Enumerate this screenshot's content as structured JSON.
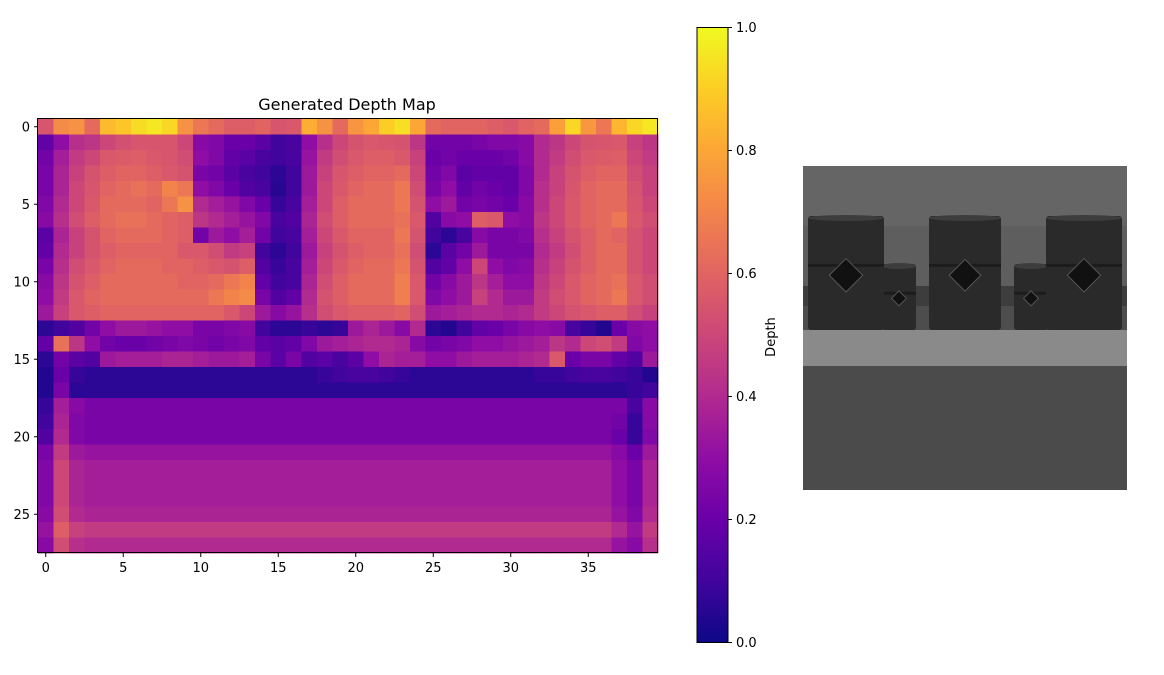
{
  "chart_data": [
    {
      "type": "heatmap",
      "title": "Generated Depth Map",
      "colormap": "plasma",
      "rows": 28,
      "cols": 40,
      "xlim": [
        -0.5,
        39.5
      ],
      "ylim": [
        27.5,
        -0.5
      ],
      "x_ticks": [
        0,
        5,
        10,
        15,
        20,
        25,
        30,
        35
      ],
      "y_ticks": [
        0,
        5,
        10,
        15,
        20,
        25
      ],
      "grid": false,
      "values": [
        [
          0.55,
          0.72,
          0.74,
          0.62,
          0.85,
          0.88,
          0.93,
          0.96,
          0.92,
          0.74,
          0.66,
          0.62,
          0.58,
          0.58,
          0.6,
          0.55,
          0.56,
          0.82,
          0.74,
          0.62,
          0.75,
          0.8,
          0.9,
          0.94,
          0.8,
          0.62,
          0.6,
          0.6,
          0.6,
          0.58,
          0.56,
          0.6,
          0.62,
          0.78,
          0.92,
          0.76,
          0.66,
          0.84,
          0.92,
          0.96
        ],
        [
          0.18,
          0.3,
          0.42,
          0.44,
          0.5,
          0.53,
          0.55,
          0.55,
          0.55,
          0.5,
          0.28,
          0.26,
          0.2,
          0.2,
          0.16,
          0.1,
          0.12,
          0.3,
          0.42,
          0.5,
          0.54,
          0.56,
          0.55,
          0.54,
          0.44,
          0.22,
          0.22,
          0.22,
          0.24,
          0.26,
          0.26,
          0.28,
          0.4,
          0.44,
          0.5,
          0.54,
          0.55,
          0.56,
          0.48,
          0.44
        ],
        [
          0.22,
          0.36,
          0.46,
          0.5,
          0.56,
          0.57,
          0.58,
          0.56,
          0.55,
          0.52,
          0.3,
          0.26,
          0.18,
          0.16,
          0.12,
          0.1,
          0.12,
          0.32,
          0.46,
          0.52,
          0.56,
          0.58,
          0.58,
          0.56,
          0.48,
          0.2,
          0.22,
          0.2,
          0.2,
          0.2,
          0.22,
          0.28,
          0.4,
          0.46,
          0.52,
          0.56,
          0.57,
          0.58,
          0.5,
          0.46
        ],
        [
          0.24,
          0.38,
          0.48,
          0.54,
          0.58,
          0.6,
          0.6,
          0.58,
          0.56,
          0.54,
          0.24,
          0.22,
          0.16,
          0.12,
          0.1,
          0.06,
          0.1,
          0.34,
          0.48,
          0.55,
          0.58,
          0.6,
          0.6,
          0.62,
          0.5,
          0.22,
          0.26,
          0.16,
          0.18,
          0.18,
          0.18,
          0.26,
          0.4,
          0.48,
          0.54,
          0.58,
          0.6,
          0.6,
          0.52,
          0.48
        ],
        [
          0.24,
          0.38,
          0.5,
          0.55,
          0.6,
          0.62,
          0.64,
          0.62,
          0.7,
          0.66,
          0.3,
          0.26,
          0.2,
          0.14,
          0.12,
          0.05,
          0.1,
          0.34,
          0.5,
          0.56,
          0.6,
          0.62,
          0.62,
          0.66,
          0.52,
          0.24,
          0.3,
          0.18,
          0.22,
          0.2,
          0.18,
          0.26,
          0.42,
          0.48,
          0.55,
          0.6,
          0.62,
          0.62,
          0.54,
          0.48
        ],
        [
          0.26,
          0.4,
          0.5,
          0.56,
          0.62,
          0.62,
          0.62,
          0.6,
          0.66,
          0.74,
          0.4,
          0.36,
          0.32,
          0.26,
          0.2,
          0.08,
          0.12,
          0.36,
          0.5,
          0.58,
          0.62,
          0.62,
          0.62,
          0.66,
          0.54,
          0.3,
          0.34,
          0.22,
          0.24,
          0.22,
          0.2,
          0.28,
          0.42,
          0.5,
          0.56,
          0.6,
          0.62,
          0.62,
          0.55,
          0.5
        ],
        [
          0.28,
          0.42,
          0.52,
          0.58,
          0.62,
          0.64,
          0.64,
          0.62,
          0.6,
          0.58,
          0.44,
          0.4,
          0.36,
          0.32,
          0.26,
          0.12,
          0.14,
          0.38,
          0.52,
          0.58,
          0.62,
          0.62,
          0.62,
          0.64,
          0.56,
          0.14,
          0.28,
          0.3,
          0.58,
          0.56,
          0.3,
          0.28,
          0.44,
          0.5,
          0.56,
          0.6,
          0.62,
          0.66,
          0.56,
          0.52
        ],
        [
          0.16,
          0.38,
          0.48,
          0.54,
          0.6,
          0.62,
          0.62,
          0.62,
          0.6,
          0.58,
          0.22,
          0.34,
          0.3,
          0.36,
          0.22,
          0.1,
          0.12,
          0.36,
          0.5,
          0.56,
          0.6,
          0.6,
          0.6,
          0.66,
          0.54,
          0.1,
          0.06,
          0.12,
          0.28,
          0.24,
          0.24,
          0.26,
          0.42,
          0.48,
          0.54,
          0.58,
          0.62,
          0.6,
          0.54,
          0.5
        ],
        [
          0.18,
          0.4,
          0.48,
          0.54,
          0.58,
          0.6,
          0.6,
          0.6,
          0.6,
          0.56,
          0.56,
          0.52,
          0.46,
          0.48,
          0.1,
          0.06,
          0.1,
          0.34,
          0.48,
          0.54,
          0.58,
          0.6,
          0.6,
          0.64,
          0.52,
          0.06,
          0.16,
          0.22,
          0.34,
          0.24,
          0.24,
          0.24,
          0.4,
          0.46,
          0.52,
          0.58,
          0.62,
          0.62,
          0.54,
          0.5
        ],
        [
          0.24,
          0.42,
          0.52,
          0.56,
          0.6,
          0.62,
          0.62,
          0.62,
          0.6,
          0.6,
          0.58,
          0.56,
          0.54,
          0.58,
          0.14,
          0.08,
          0.12,
          0.36,
          0.5,
          0.56,
          0.6,
          0.62,
          0.62,
          0.66,
          0.54,
          0.14,
          0.18,
          0.3,
          0.5,
          0.3,
          0.26,
          0.28,
          0.42,
          0.48,
          0.54,
          0.58,
          0.62,
          0.62,
          0.54,
          0.5
        ],
        [
          0.28,
          0.44,
          0.54,
          0.58,
          0.62,
          0.62,
          0.62,
          0.62,
          0.62,
          0.6,
          0.6,
          0.62,
          0.66,
          0.7,
          0.18,
          0.1,
          0.12,
          0.38,
          0.52,
          0.58,
          0.62,
          0.62,
          0.62,
          0.68,
          0.56,
          0.22,
          0.28,
          0.34,
          0.44,
          0.36,
          0.3,
          0.3,
          0.44,
          0.5,
          0.56,
          0.6,
          0.62,
          0.64,
          0.56,
          0.52
        ],
        [
          0.3,
          0.46,
          0.56,
          0.6,
          0.62,
          0.62,
          0.62,
          0.62,
          0.62,
          0.62,
          0.62,
          0.66,
          0.7,
          0.72,
          0.24,
          0.14,
          0.18,
          0.4,
          0.54,
          0.58,
          0.62,
          0.62,
          0.62,
          0.68,
          0.56,
          0.26,
          0.3,
          0.34,
          0.48,
          0.4,
          0.34,
          0.34,
          0.46,
          0.52,
          0.56,
          0.6,
          0.62,
          0.66,
          0.56,
          0.52
        ],
        [
          0.34,
          0.48,
          0.56,
          0.58,
          0.6,
          0.6,
          0.6,
          0.6,
          0.6,
          0.6,
          0.6,
          0.6,
          0.56,
          0.5,
          0.34,
          0.28,
          0.32,
          0.42,
          0.52,
          0.56,
          0.58,
          0.58,
          0.58,
          0.6,
          0.52,
          0.34,
          0.36,
          0.38,
          0.4,
          0.4,
          0.38,
          0.4,
          0.46,
          0.5,
          0.54,
          0.56,
          0.58,
          0.58,
          0.52,
          0.48
        ],
        [
          0.06,
          0.1,
          0.14,
          0.22,
          0.3,
          0.34,
          0.34,
          0.32,
          0.3,
          0.3,
          0.24,
          0.24,
          0.26,
          0.28,
          0.1,
          0.06,
          0.06,
          0.08,
          0.06,
          0.08,
          0.34,
          0.38,
          0.34,
          0.28,
          0.4,
          0.06,
          0.04,
          0.1,
          0.18,
          0.2,
          0.24,
          0.28,
          0.3,
          0.28,
          0.12,
          0.08,
          0.04,
          0.2,
          0.28,
          0.3
        ],
        [
          0.18,
          0.64,
          0.44,
          0.3,
          0.22,
          0.2,
          0.2,
          0.22,
          0.24,
          0.26,
          0.24,
          0.22,
          0.24,
          0.26,
          0.18,
          0.16,
          0.18,
          0.26,
          0.34,
          0.36,
          0.38,
          0.4,
          0.4,
          0.38,
          0.28,
          0.22,
          0.24,
          0.26,
          0.3,
          0.3,
          0.32,
          0.34,
          0.36,
          0.44,
          0.4,
          0.5,
          0.52,
          0.46,
          0.26,
          0.3
        ],
        [
          0.06,
          0.22,
          0.16,
          0.14,
          0.34,
          0.36,
          0.36,
          0.36,
          0.38,
          0.38,
          0.36,
          0.34,
          0.34,
          0.36,
          0.24,
          0.16,
          0.24,
          0.14,
          0.16,
          0.12,
          0.16,
          0.3,
          0.38,
          0.36,
          0.36,
          0.3,
          0.3,
          0.34,
          0.36,
          0.36,
          0.36,
          0.38,
          0.4,
          0.56,
          0.2,
          0.24,
          0.24,
          0.18,
          0.14,
          0.34
        ],
        [
          0.04,
          0.2,
          0.08,
          0.06,
          0.06,
          0.06,
          0.06,
          0.06,
          0.06,
          0.06,
          0.06,
          0.06,
          0.06,
          0.06,
          0.06,
          0.06,
          0.06,
          0.06,
          0.08,
          0.1,
          0.12,
          0.12,
          0.1,
          0.08,
          0.06,
          0.06,
          0.06,
          0.06,
          0.06,
          0.06,
          0.06,
          0.06,
          0.08,
          0.08,
          0.1,
          0.12,
          0.12,
          0.1,
          0.08,
          0.04
        ],
        [
          0.04,
          0.24,
          0.06,
          0.06,
          0.06,
          0.06,
          0.06,
          0.06,
          0.06,
          0.06,
          0.06,
          0.06,
          0.06,
          0.06,
          0.06,
          0.06,
          0.06,
          0.06,
          0.06,
          0.06,
          0.06,
          0.06,
          0.06,
          0.06,
          0.06,
          0.06,
          0.06,
          0.06,
          0.06,
          0.06,
          0.06,
          0.06,
          0.06,
          0.06,
          0.06,
          0.06,
          0.06,
          0.06,
          0.08,
          0.1
        ],
        [
          0.08,
          0.36,
          0.28,
          0.24,
          0.24,
          0.24,
          0.24,
          0.24,
          0.24,
          0.24,
          0.24,
          0.24,
          0.24,
          0.24,
          0.24,
          0.24,
          0.24,
          0.24,
          0.24,
          0.24,
          0.24,
          0.24,
          0.24,
          0.24,
          0.24,
          0.24,
          0.24,
          0.24,
          0.24,
          0.24,
          0.24,
          0.24,
          0.24,
          0.24,
          0.24,
          0.24,
          0.24,
          0.24,
          0.12,
          0.28
        ],
        [
          0.1,
          0.38,
          0.26,
          0.24,
          0.24,
          0.24,
          0.24,
          0.24,
          0.24,
          0.24,
          0.24,
          0.24,
          0.24,
          0.24,
          0.24,
          0.24,
          0.24,
          0.24,
          0.24,
          0.24,
          0.24,
          0.24,
          0.24,
          0.24,
          0.24,
          0.24,
          0.24,
          0.24,
          0.24,
          0.24,
          0.24,
          0.24,
          0.24,
          0.24,
          0.24,
          0.24,
          0.24,
          0.22,
          0.08,
          0.28
        ],
        [
          0.14,
          0.4,
          0.26,
          0.24,
          0.24,
          0.24,
          0.24,
          0.24,
          0.24,
          0.24,
          0.24,
          0.24,
          0.24,
          0.24,
          0.24,
          0.24,
          0.24,
          0.24,
          0.24,
          0.24,
          0.24,
          0.24,
          0.24,
          0.24,
          0.24,
          0.24,
          0.24,
          0.24,
          0.24,
          0.24,
          0.24,
          0.24,
          0.24,
          0.24,
          0.24,
          0.24,
          0.24,
          0.2,
          0.08,
          0.26
        ],
        [
          0.24,
          0.46,
          0.34,
          0.32,
          0.32,
          0.32,
          0.32,
          0.32,
          0.32,
          0.32,
          0.32,
          0.32,
          0.32,
          0.32,
          0.32,
          0.32,
          0.32,
          0.32,
          0.32,
          0.32,
          0.32,
          0.32,
          0.32,
          0.32,
          0.32,
          0.32,
          0.32,
          0.32,
          0.32,
          0.32,
          0.32,
          0.32,
          0.32,
          0.32,
          0.32,
          0.32,
          0.32,
          0.28,
          0.2,
          0.34
        ],
        [
          0.26,
          0.5,
          0.38,
          0.36,
          0.36,
          0.36,
          0.36,
          0.36,
          0.36,
          0.36,
          0.36,
          0.36,
          0.36,
          0.36,
          0.36,
          0.36,
          0.36,
          0.36,
          0.36,
          0.36,
          0.36,
          0.36,
          0.36,
          0.36,
          0.36,
          0.36,
          0.36,
          0.36,
          0.36,
          0.36,
          0.36,
          0.36,
          0.36,
          0.36,
          0.36,
          0.36,
          0.36,
          0.3,
          0.24,
          0.38
        ],
        [
          0.26,
          0.5,
          0.38,
          0.36,
          0.36,
          0.36,
          0.36,
          0.36,
          0.36,
          0.36,
          0.36,
          0.36,
          0.36,
          0.36,
          0.36,
          0.36,
          0.36,
          0.36,
          0.36,
          0.36,
          0.36,
          0.36,
          0.36,
          0.36,
          0.36,
          0.36,
          0.36,
          0.36,
          0.36,
          0.36,
          0.36,
          0.36,
          0.36,
          0.36,
          0.36,
          0.36,
          0.36,
          0.3,
          0.24,
          0.38
        ],
        [
          0.26,
          0.5,
          0.38,
          0.36,
          0.36,
          0.36,
          0.36,
          0.36,
          0.36,
          0.36,
          0.36,
          0.36,
          0.36,
          0.36,
          0.36,
          0.36,
          0.36,
          0.36,
          0.36,
          0.36,
          0.36,
          0.36,
          0.36,
          0.36,
          0.36,
          0.36,
          0.36,
          0.36,
          0.36,
          0.36,
          0.36,
          0.36,
          0.36,
          0.36,
          0.36,
          0.36,
          0.36,
          0.3,
          0.24,
          0.38
        ],
        [
          0.28,
          0.52,
          0.4,
          0.38,
          0.38,
          0.38,
          0.38,
          0.38,
          0.38,
          0.38,
          0.38,
          0.38,
          0.38,
          0.38,
          0.38,
          0.38,
          0.38,
          0.38,
          0.38,
          0.38,
          0.38,
          0.38,
          0.38,
          0.38,
          0.38,
          0.38,
          0.38,
          0.38,
          0.38,
          0.38,
          0.38,
          0.38,
          0.38,
          0.38,
          0.38,
          0.38,
          0.38,
          0.32,
          0.26,
          0.4
        ],
        [
          0.32,
          0.58,
          0.48,
          0.46,
          0.46,
          0.46,
          0.46,
          0.46,
          0.46,
          0.46,
          0.46,
          0.46,
          0.46,
          0.46,
          0.46,
          0.46,
          0.46,
          0.46,
          0.46,
          0.46,
          0.46,
          0.46,
          0.46,
          0.46,
          0.46,
          0.46,
          0.46,
          0.46,
          0.46,
          0.46,
          0.46,
          0.46,
          0.46,
          0.46,
          0.46,
          0.46,
          0.46,
          0.4,
          0.32,
          0.46
        ],
        [
          0.28,
          0.52,
          0.42,
          0.4,
          0.4,
          0.4,
          0.4,
          0.4,
          0.4,
          0.4,
          0.4,
          0.4,
          0.4,
          0.4,
          0.4,
          0.4,
          0.4,
          0.4,
          0.4,
          0.4,
          0.4,
          0.4,
          0.4,
          0.4,
          0.4,
          0.4,
          0.4,
          0.4,
          0.4,
          0.4,
          0.4,
          0.4,
          0.4,
          0.4,
          0.4,
          0.4,
          0.4,
          0.32,
          0.28,
          0.42
        ]
      ],
      "colorbar": {
        "label": "Depth",
        "range": [
          0,
          1
        ],
        "ticks": [
          "0.0",
          "0.2",
          "0.4",
          "0.6",
          "0.8",
          "1.0"
        ]
      }
    }
  ],
  "photo": {
    "subject": "grayscale-render-of-barrels",
    "sky_color": "#5e5e5e",
    "ground_color": "#4b4b4b",
    "floor_color": "#8a8a8a",
    "barrel_color": "#2a2a2a"
  }
}
